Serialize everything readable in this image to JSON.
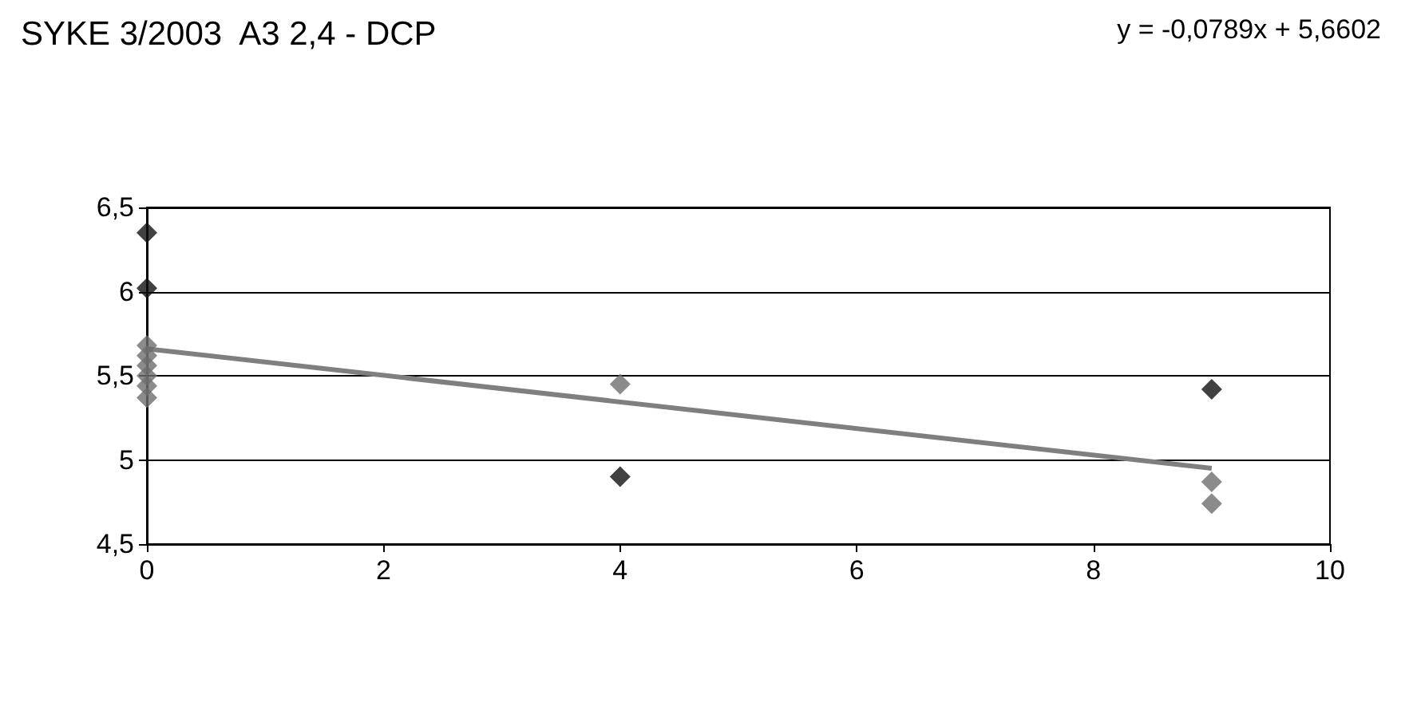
{
  "chart_data": {
    "type": "scatter",
    "title": "SYKE 3/2003  A3 2,4 - DCP",
    "annotations": [
      "y = -0,0789x + 5,6602"
    ],
    "series": [
      {
        "color": "#111111",
        "x": [
          0,
          0,
          4,
          9
        ],
        "values": [
          6.35,
          6.02,
          4.9,
          5.42
        ]
      },
      {
        "color": "#6e6e6e",
        "x": [
          0,
          0,
          0,
          0,
          0,
          0,
          4,
          9,
          9
        ],
        "values": [
          5.68,
          5.62,
          5.56,
          5.5,
          5.44,
          5.37,
          5.45,
          4.87,
          4.74
        ]
      },
      {
        "type": "line",
        "color": "#7f7f7f",
        "x": [
          0,
          9
        ],
        "values": [
          5.66,
          4.95
        ],
        "marker": "none"
      }
    ],
    "xlim": [
      0,
      10
    ],
    "xticks": [
      0,
      2,
      4,
      6,
      8,
      10
    ],
    "ylim": [
      4.5,
      6.5
    ],
    "yticks": [
      {
        "value": 4.5,
        "label": "4,5"
      },
      5,
      {
        "value": 5.5,
        "label": "5,5"
      },
      6,
      {
        "value": 6.5,
        "label": "6,5"
      }
    ],
    "grid": "y",
    "marker": "diamond"
  }
}
